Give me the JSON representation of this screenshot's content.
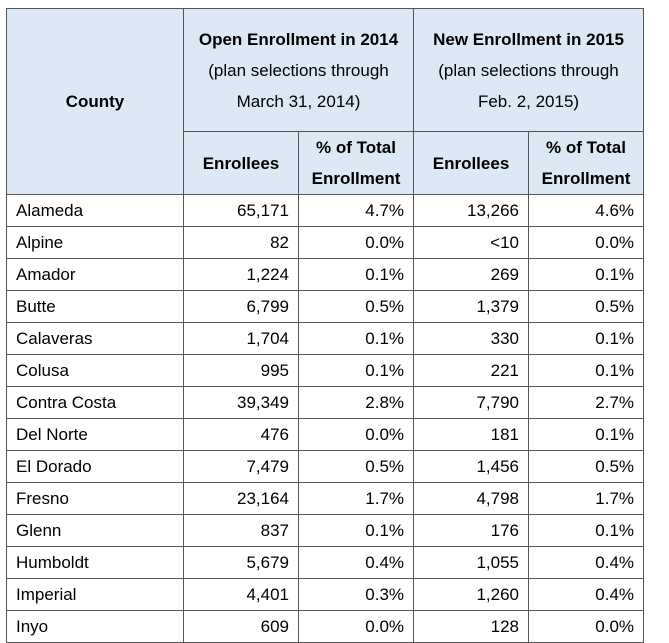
{
  "header": {
    "county": "County",
    "group1": {
      "title": "Open Enrollment in 2014",
      "note": "(plan selections through March 31, 2014)"
    },
    "group2": {
      "title": "New Enrollment in 2015",
      "note": "(plan selections through Feb. 2, 2015)"
    },
    "enrollees1": "Enrollees",
    "pct1": "% of Total Enrollment",
    "enrollees2": "Enrollees",
    "pct2": "% of Total Enrollment"
  },
  "table": {
    "rows": [
      [
        "Alameda",
        "65,171",
        "4.7%",
        "13,266",
        "4.6%"
      ],
      [
        "Alpine",
        "82",
        "0.0%",
        "<10",
        "0.0%"
      ],
      [
        "Amador",
        "1,224",
        "0.1%",
        "269",
        "0.1%"
      ],
      [
        "Butte",
        "6,799",
        "0.5%",
        "1,379",
        "0.5%"
      ],
      [
        "Calaveras",
        "1,704",
        "0.1%",
        "330",
        "0.1%"
      ],
      [
        "Colusa",
        "995",
        "0.1%",
        "221",
        "0.1%"
      ],
      [
        "Contra Costa",
        "39,349",
        "2.8%",
        "7,790",
        "2.7%"
      ],
      [
        "Del Norte",
        "476",
        "0.0%",
        "181",
        "0.1%"
      ],
      [
        "El Dorado",
        "7,479",
        "0.5%",
        "1,456",
        "0.5%"
      ],
      [
        "Fresno",
        "23,164",
        "1.7%",
        "4,798",
        "1.7%"
      ],
      [
        "Glenn",
        "837",
        "0.1%",
        "176",
        "0.1%"
      ],
      [
        "Humboldt",
        "5,679",
        "0.4%",
        "1,055",
        "0.4%"
      ],
      [
        "Imperial",
        "4,401",
        "0.3%",
        "1,260",
        "0.4%"
      ],
      [
        "Inyo",
        "609",
        "0.0%",
        "128",
        "0.0%"
      ]
    ]
  }
}
